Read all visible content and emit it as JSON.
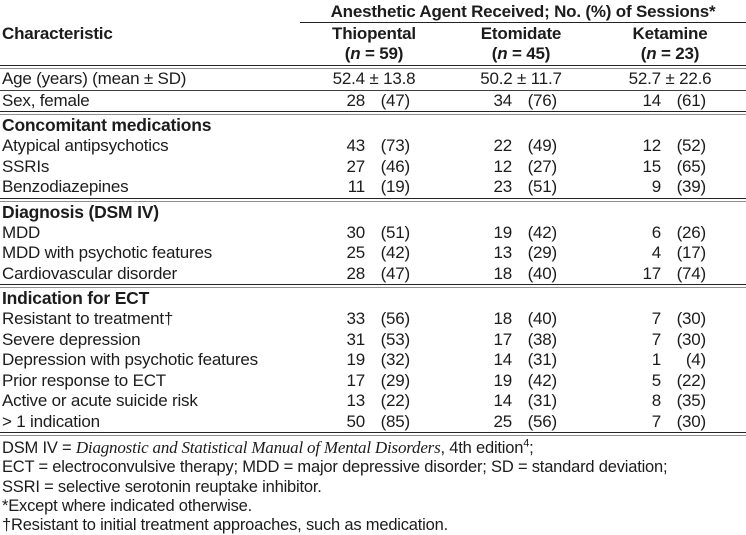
{
  "table": {
    "span_header": "Anesthetic Agent Received; No. (%) of Sessions*",
    "characteristic_header": "Characteristic",
    "columns": [
      {
        "name": "Thiopental",
        "n": "59"
      },
      {
        "name": "Etomidate",
        "n": "45"
      },
      {
        "name": "Ketamine",
        "n": "23"
      }
    ],
    "rows": [
      {
        "type": "data",
        "label": "Age (years) (mean ± SD)",
        "values": [
          "52.4 ± 13.8",
          "50.2 ± 11.7",
          "52.7 ± 22.6"
        ],
        "rule_after": "thin"
      },
      {
        "type": "data",
        "label": "Sex, female",
        "values": [
          "28 (47)",
          "34 (76)",
          "14 (61)"
        ],
        "rule_after": "section"
      },
      {
        "type": "section",
        "label": "Concomitant medications"
      },
      {
        "type": "data",
        "label": "Atypical antipsychotics",
        "values": [
          "43 (73)",
          "22 (49)",
          "12 (52)"
        ]
      },
      {
        "type": "data",
        "label": "SSRIs",
        "values": [
          "27 (46)",
          "12 (27)",
          "15 (65)"
        ]
      },
      {
        "type": "data",
        "label": "Benzodiazepines",
        "values": [
          "11 (19)",
          "23 (51)",
          "9 (39)"
        ],
        "rule_after": "section"
      },
      {
        "type": "section",
        "label": "Diagnosis (DSM IV)"
      },
      {
        "type": "data",
        "label": "MDD",
        "values": [
          "30 (51)",
          "19 (42)",
          "6 (26)"
        ]
      },
      {
        "type": "data",
        "label": "MDD with psychotic features",
        "values": [
          "25 (42)",
          "13 (29)",
          "4 (17)"
        ]
      },
      {
        "type": "data",
        "label": "Cardiovascular disorder",
        "values": [
          "28 (47)",
          "18 (40)",
          "17 (74)"
        ],
        "rule_after": "section"
      },
      {
        "type": "section",
        "label": "Indication for ECT"
      },
      {
        "type": "data",
        "label": "Resistant to treatment†",
        "values": [
          "33 (56)",
          "18 (40)",
          "7 (30)"
        ]
      },
      {
        "type": "data",
        "label": "Severe depression",
        "values": [
          "31 (53)",
          "17 (38)",
          "7 (30)"
        ]
      },
      {
        "type": "data",
        "label": "Depression with psychotic features",
        "values": [
          "19 (32)",
          "14 (31)",
          "1 (4)"
        ]
      },
      {
        "type": "data",
        "label": "Prior response to ECT",
        "values": [
          "17 (29)",
          "19 (42)",
          "5 (22)"
        ]
      },
      {
        "type": "data",
        "label": "Active or acute suicide risk",
        "values": [
          "13 (22)",
          "14 (31)",
          "8 (35)"
        ]
      },
      {
        "type": "data",
        "label": "> 1 indication",
        "values": [
          "50 (85)",
          "25 (56)",
          "7 (30)"
        ],
        "rule_after": "section"
      }
    ],
    "footnotes": {
      "line1": {
        "prefix": "DSM IV = ",
        "title": "Diagnostic and Statistical Manual of Mental Disorders",
        "middle": ", 4th edition",
        "sup": "4",
        "end": ";"
      },
      "lines": [
        "ECT = electroconvulsive therapy; MDD = major depressive disorder; SD = standard deviation;",
        "SSRI = selective serotonin reuptake inhibitor.",
        "*Except where indicated otherwise.",
        "†Resistant to initial treatment approaches, such as medication."
      ]
    }
  }
}
